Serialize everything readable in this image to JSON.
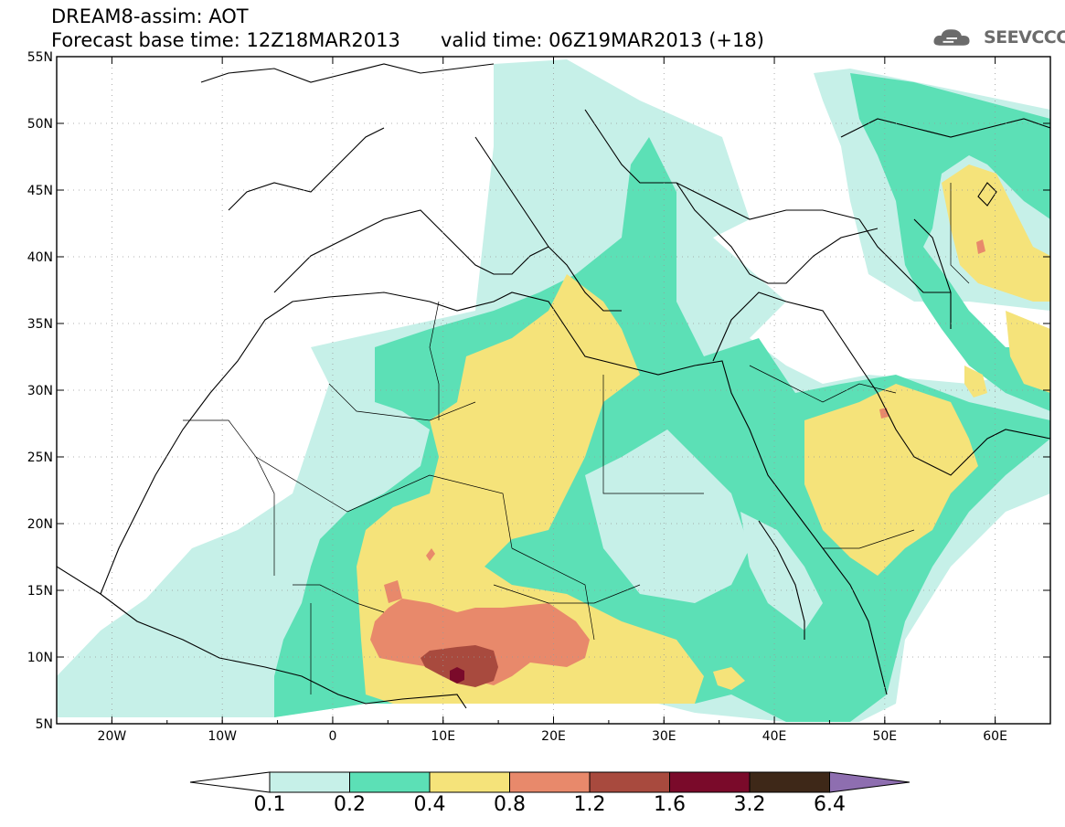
{
  "header": {
    "line1": "DREAM8-assim: AOT",
    "line2_left": "Forecast base time: 12Z18MAR2013",
    "line2_right": "valid time: 06Z19MAR2013 (+18)",
    "logo_text": "SEEVCCC"
  },
  "axes": {
    "lon_labels": [
      "20W",
      "10W",
      "0",
      "10E",
      "20E",
      "30E",
      "40E",
      "50E",
      "60E"
    ],
    "lat_labels": [
      "55N",
      "50N",
      "45N",
      "40N",
      "35N",
      "30N",
      "25N",
      "20N",
      "15N",
      "10N",
      "5N"
    ],
    "lon_range": [
      -25,
      65
    ],
    "lat_range": [
      5,
      55
    ],
    "grid": "dotted"
  },
  "colorbar": {
    "labels": [
      "0.1",
      "0.2",
      "0.4",
      "0.8",
      "1.2",
      "1.6",
      "3.2",
      "6.4"
    ],
    "colors": [
      "#ffffff",
      "#c6f0e8",
      "#5ce0b6",
      "#f5e37a",
      "#e8896b",
      "#a84a3e",
      "#7a0a2a",
      "#3e2818",
      "#8e6eb0"
    ]
  }
}
